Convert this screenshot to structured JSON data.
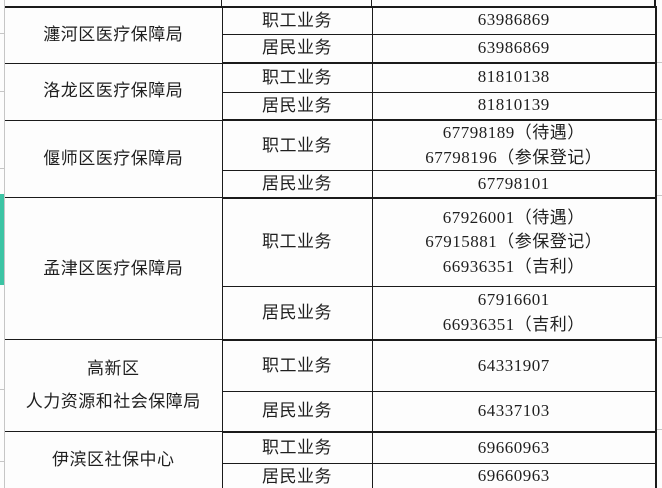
{
  "colors": {
    "highlight_bar": "#3cc4a4",
    "grid_border": "#1b1b1b",
    "muted_border": "#c6c6c6",
    "text": "#1f1f1f",
    "background": "#fdfdfd"
  },
  "table": {
    "sections": [
      {
        "org": [
          "瀍河区医疗保障局"
        ],
        "rows": [
          {
            "business": "职工业务",
            "phones": [
              "63986869"
            ]
          },
          {
            "business": "居民业务",
            "phones": [
              "63986869"
            ]
          }
        ]
      },
      {
        "org": [
          "洛龙区医疗保障局"
        ],
        "rows": [
          {
            "business": "职工业务",
            "phones": [
              "81810138"
            ]
          },
          {
            "business": "居民业务",
            "phones": [
              "81810139"
            ]
          }
        ]
      },
      {
        "org": [
          "偃师区医疗保障局"
        ],
        "rows": [
          {
            "business": "职工业务",
            "phones": [
              "67798189（待遇）",
              "67798196（参保登记）"
            ]
          },
          {
            "business": "居民业务",
            "phones": [
              "67798101"
            ]
          }
        ]
      },
      {
        "org": [
          "孟津区医疗保障局"
        ],
        "rows": [
          {
            "business": "职工业务",
            "phones": [
              "67926001（待遇）",
              "67915881（参保登记）",
              "66936351（吉利）"
            ]
          },
          {
            "business": "居民业务",
            "phones": [
              "67916601",
              "66936351（吉利）"
            ]
          }
        ]
      },
      {
        "org": [
          "高新区",
          "人力资源和社会保障局"
        ],
        "rows": [
          {
            "business": "职工业务",
            "phones": [
              "64331907"
            ]
          },
          {
            "business": "居民业务",
            "phones": [
              "64337103"
            ]
          }
        ]
      },
      {
        "org": [
          "伊滨区社保中心"
        ],
        "rows": [
          {
            "business": "职工业务",
            "phones": [
              "69660963"
            ]
          },
          {
            "business": "居民业务",
            "phones": [
              "69660963"
            ]
          }
        ]
      }
    ]
  }
}
